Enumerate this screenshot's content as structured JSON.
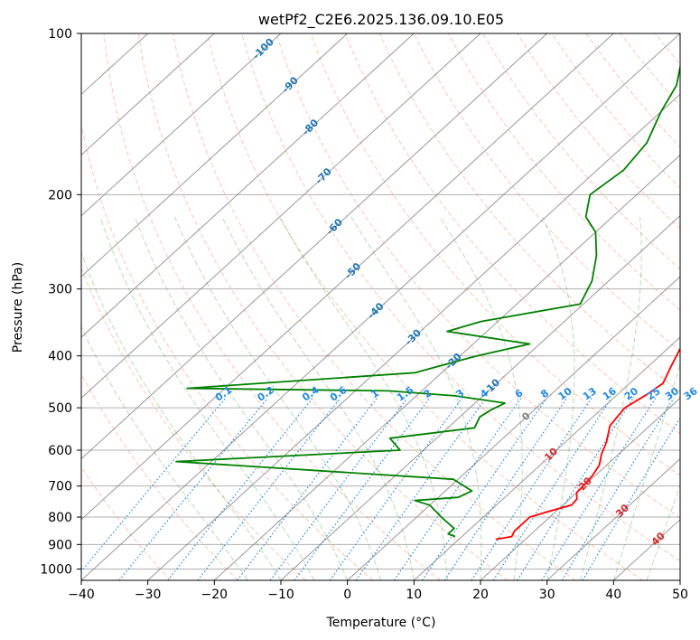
{
  "chart_data": {
    "type": "skew-t",
    "title": "wetPf2_C2E6.2025.136.09.10.E05",
    "xlabel": "Temperature (°C)",
    "ylabel": "Pressure (hPa)",
    "xlim": [
      -40,
      50
    ],
    "ylim": [
      1050,
      100
    ],
    "y_scale": "log",
    "grid": true,
    "x_ticks": [
      "−40",
      "−30",
      "−20",
      "−10",
      "0",
      "10",
      "20",
      "30",
      "40",
      "50"
    ],
    "y_ticks": [
      "100",
      "200",
      "300",
      "400",
      "500",
      "600",
      "700",
      "800",
      "900",
      "1000"
    ],
    "y_tick_values": [
      100,
      200,
      300,
      400,
      500,
      600,
      700,
      800,
      900,
      1000
    ],
    "isotherm_labels": [
      "-100",
      "-90",
      "-80",
      "-70",
      "-60",
      "-50",
      "-40",
      "-30",
      "-20",
      "-10",
      "0",
      "10",
      "20",
      "30",
      "40"
    ],
    "mixing_ratio_labels": [
      "0.1",
      "0.2",
      "0.4",
      "0.6",
      "1",
      "1.5",
      "2",
      "3",
      "4",
      "6",
      "8",
      "10",
      "13",
      "16",
      "20",
      "25",
      "30",
      "36"
    ],
    "colors": {
      "temperature": "#ff0000",
      "dewpoint": "#008000",
      "isotherm_label_cold": "#1f77b4",
      "isotherm_label_zero": "#808080",
      "isotherm_label_warm": "#d62728",
      "mixing_ratio": "#1e88e5",
      "dry_adiabat": "#ff7f50",
      "moist_adiabat": "#2ca02c",
      "isotherm_line": "#808080",
      "grid": "#b0b0b0"
    },
    "series": [
      {
        "name": "Temperature",
        "pressure": [
          880,
          870,
          850,
          800,
          780,
          760,
          740,
          720,
          700,
          670,
          640,
          610,
          580,
          540,
          500,
          470,
          450,
          420,
          390,
          360,
          330,
          300,
          270,
          240,
          220,
          200,
          180,
          160,
          145,
          130,
          120,
          110,
          100
        ],
        "values": [
          15.5,
          17.5,
          17,
          17,
          19,
          21.3,
          21.1,
          20,
          19.9,
          19.6,
          18.9,
          17.4,
          16.2,
          14,
          13.3,
          14.5,
          15,
          13.5,
          12,
          10.6,
          8.5,
          5.8,
          2.5,
          0,
          -2.5,
          -5,
          -8,
          -10.5,
          -11.5,
          -12,
          -12.5,
          -13,
          -13.5
        ]
      },
      {
        "name": "Dewpoint",
        "pressure": [
          870,
          860,
          840,
          800,
          760,
          745,
          735,
          715,
          680,
          630,
          600,
          570,
          545,
          520,
          505,
          490,
          475,
          465,
          460,
          430,
          400,
          380,
          360,
          345,
          320,
          290,
          260,
          235,
          220,
          200,
          180,
          160,
          140,
          125,
          110,
          100
        ],
        "values": [
          9,
          7.5,
          7.5,
          3.7,
          0,
          -3,
          3,
          4,
          -0.7,
          -45.3,
          -13.5,
          -17,
          -6,
          -7,
          -6.5,
          -5.5,
          -14.2,
          -25,
          -55.7,
          -24,
          -17.5,
          -11.5,
          -26,
          -22.5,
          -10.5,
          -12.5,
          -16,
          -20,
          -24,
          -27,
          -26,
          -27,
          -30,
          -32,
          -36,
          -38
        ]
      }
    ]
  }
}
